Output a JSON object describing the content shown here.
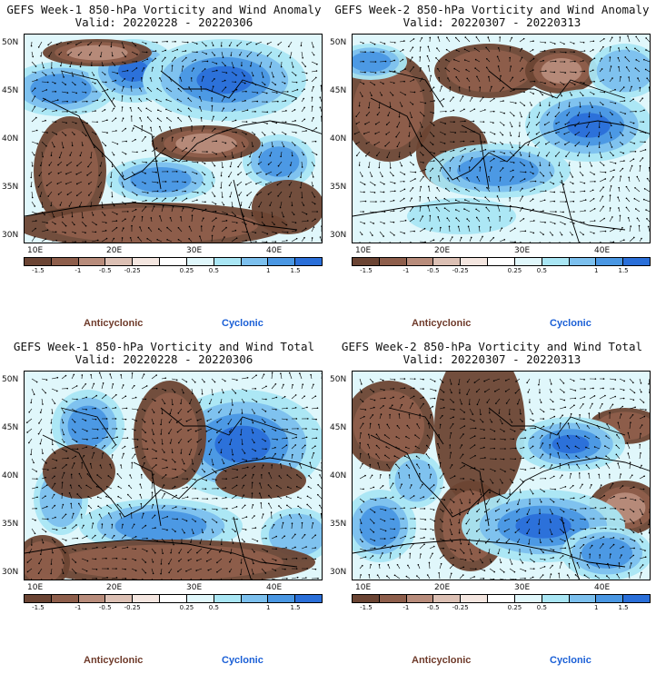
{
  "colors": {
    "anticyclonic": "#6e3a2a",
    "cyclonic": "#1a5fd6",
    "colorbar": [
      "#6b4433",
      "#8e5e4b",
      "#b88c7b",
      "#dcc0b4",
      "#f4e6e0",
      "#ffffff",
      "#e0f7fb",
      "#a9e6f4",
      "#7cc0ee",
      "#4a97e3",
      "#2a6fd9"
    ]
  },
  "colorbar_labels": [
    "-1.5",
    "-1",
    "-0.5",
    "-0.25",
    "0.25",
    "0.5",
    "1",
    "1.5"
  ],
  "lat_labels": [
    "50N",
    "45N",
    "40N",
    "35N",
    "30N"
  ],
  "lon_labels": [
    "10E",
    "20E",
    "30E",
    "40E"
  ],
  "legend": {
    "anticyclonic": "Anticyclonic",
    "cyclonic": "Cyclonic"
  },
  "panels": [
    {
      "title": "GEFS Week-1 850-hPa Vorticity and Wind Anomaly",
      "valid": "Valid: 20220228 - 20220306"
    },
    {
      "title": "GEFS Week-2 850-hPa Vorticity and Wind Anomaly",
      "valid": "Valid: 20220307 - 20220313"
    },
    {
      "title": "GEFS Week-1 850-hPa Vorticity and Wind Total",
      "valid": "Valid: 20220228 - 20220306"
    },
    {
      "title": "GEFS Week-2 850-hPa Vorticity and Wind Total",
      "valid": "Valid: 20220307 - 20220313"
    }
  ]
}
